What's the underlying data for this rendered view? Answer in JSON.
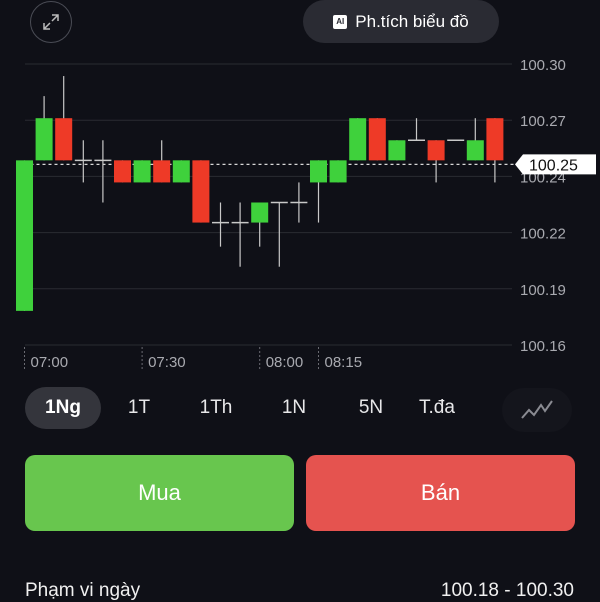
{
  "header": {
    "expand_icon": "expand-arrows-icon",
    "ai_button_icon": "ai-chat-icon",
    "ai_button_label": "Ph.tích biểu đồ"
  },
  "chart_data": {
    "type": "candlestick",
    "ylim": [
      100.16,
      100.3
    ],
    "y_tick_values": [
      100.16,
      100.188,
      100.216,
      100.244,
      100.272,
      100.3
    ],
    "y_tick_labels": [
      "100.16",
      "100.19",
      "100.22",
      "100.24",
      "100.27",
      "100.30"
    ],
    "x_tick_labels": [
      {
        "index": 0,
        "label": "07:00"
      },
      {
        "index": 6,
        "label": "07:30"
      },
      {
        "index": 12,
        "label": "08:00"
      },
      {
        "index": 15,
        "label": "08:15"
      }
    ],
    "current_price": 100.25,
    "current_price_label": "100.25",
    "colors": {
      "up": "#3fd13c",
      "down": "#ee3a27",
      "doji": "#c8c8c8",
      "grid": "#2a2b32"
    },
    "candles": [
      {
        "o": 100.177,
        "h": 100.252,
        "l": 100.177,
        "c": 100.252
      },
      {
        "o": 100.252,
        "h": 100.284,
        "l": 100.252,
        "c": 100.273
      },
      {
        "o": 100.273,
        "h": 100.294,
        "l": 100.252,
        "c": 100.252
      },
      {
        "o": 100.252,
        "h": 100.262,
        "l": 100.241,
        "c": 100.252
      },
      {
        "o": 100.252,
        "h": 100.262,
        "l": 100.231,
        "c": 100.252
      },
      {
        "o": 100.252,
        "h": 100.252,
        "l": 100.241,
        "c": 100.241
      },
      {
        "o": 100.241,
        "h": 100.252,
        "l": 100.241,
        "c": 100.252
      },
      {
        "o": 100.252,
        "h": 100.262,
        "l": 100.241,
        "c": 100.241
      },
      {
        "o": 100.241,
        "h": 100.252,
        "l": 100.241,
        "c": 100.252
      },
      {
        "o": 100.252,
        "h": 100.252,
        "l": 100.221,
        "c": 100.221
      },
      {
        "o": 100.221,
        "h": 100.231,
        "l": 100.209,
        "c": 100.221
      },
      {
        "o": 100.221,
        "h": 100.231,
        "l": 100.199,
        "c": 100.221
      },
      {
        "o": 100.221,
        "h": 100.231,
        "l": 100.209,
        "c": 100.231
      },
      {
        "o": 100.231,
        "h": 100.231,
        "l": 100.199,
        "c": 100.231
      },
      {
        "o": 100.231,
        "h": 100.241,
        "l": 100.221,
        "c": 100.231
      },
      {
        "o": 100.241,
        "h": 100.252,
        "l": 100.221,
        "c": 100.252
      },
      {
        "o": 100.241,
        "h": 100.252,
        "l": 100.241,
        "c": 100.252
      },
      {
        "o": 100.252,
        "h": 100.273,
        "l": 100.252,
        "c": 100.273
      },
      {
        "o": 100.273,
        "h": 100.273,
        "l": 100.252,
        "c": 100.252
      },
      {
        "o": 100.252,
        "h": 100.262,
        "l": 100.252,
        "c": 100.262
      },
      {
        "o": 100.262,
        "h": 100.273,
        "l": 100.262,
        "c": 100.262
      },
      {
        "o": 100.262,
        "h": 100.262,
        "l": 100.241,
        "c": 100.252
      },
      {
        "o": 100.262,
        "h": 100.262,
        "l": 100.262,
        "c": 100.262
      },
      {
        "o": 100.252,
        "h": 100.273,
        "l": 100.252,
        "c": 100.262
      },
      {
        "o": 100.273,
        "h": 100.273,
        "l": 100.241,
        "c": 100.252
      }
    ]
  },
  "timeframes": {
    "items": [
      {
        "label": "1Ng",
        "active": true
      },
      {
        "label": "1T",
        "active": false
      },
      {
        "label": "1Th",
        "active": false
      },
      {
        "label": "1N",
        "active": false
      },
      {
        "label": "5N",
        "active": false
      },
      {
        "label": "T.đa",
        "active": false
      }
    ],
    "chart_type_icon": "line-chart-icon"
  },
  "actions": {
    "buy_label": "Mua",
    "sell_label": "Bán",
    "buy_color": "#68c64e",
    "sell_color": "#e5534f"
  },
  "stats": {
    "day_range_label": "Phạm vi ngày",
    "day_range_value": "100.18 - 100.30"
  }
}
